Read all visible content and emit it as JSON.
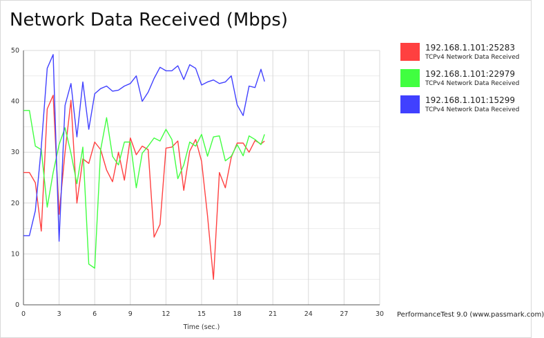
{
  "chart_data": {
    "type": "line",
    "title": "Network Data Received (Mbps)",
    "xlabel": "Time (sec.)",
    "ylabel": "",
    "xlim": [
      0,
      30
    ],
    "ylim": [
      0,
      50
    ],
    "xticks": [
      0,
      3,
      6,
      9,
      12,
      15,
      18,
      21,
      24,
      27,
      30
    ],
    "yticks": [
      0,
      10,
      20,
      30,
      40,
      50
    ],
    "grid": true,
    "legend_position": "right",
    "series": [
      {
        "name": "192.168.1.101:25283",
        "subtitle": "TCPv4 Network Data Received",
        "color": "#ff4040",
        "x": [
          0,
          0.5,
          1.0,
          1.5,
          2.0,
          2.5,
          3.0,
          3.5,
          4.0,
          4.5,
          5.0,
          5.5,
          6.0,
          6.5,
          7.0,
          7.5,
          8.0,
          8.5,
          9.0,
          9.5,
          10.0,
          10.5,
          11.0,
          11.5,
          12.0,
          12.5,
          13.0,
          13.5,
          14.0,
          14.5,
          15.0,
          15.5,
          16.0,
          16.5,
          17.0,
          17.5,
          18.0,
          18.5,
          19.0,
          19.5,
          20.0,
          20.3
        ],
        "y": [
          26,
          26,
          24,
          14.5,
          38.5,
          41.2,
          17.8,
          30,
          40.2,
          20,
          28.7,
          27.8,
          32,
          30.5,
          26.5,
          24.2,
          30,
          24.5,
          32.8,
          29.5,
          31.2,
          30.5,
          13.3,
          15.8,
          30.8,
          31,
          32.2,
          22.5,
          30.2,
          32.5,
          28.2,
          17.5,
          5,
          26,
          23,
          29,
          31.8,
          31.8,
          30,
          32.3,
          31.6,
          32.2
        ]
      },
      {
        "name": "192.168.1.101:22979",
        "subtitle": "TCPv4 Network Data Received",
        "color": "#40ff40",
        "x": [
          0,
          0.5,
          1.0,
          1.5,
          2.0,
          2.5,
          3.0,
          3.5,
          4.0,
          4.5,
          5.0,
          5.5,
          6.0,
          6.5,
          7.0,
          7.5,
          8.0,
          8.5,
          9.0,
          9.5,
          10.0,
          10.5,
          11.0,
          11.5,
          12.0,
          12.5,
          13.0,
          13.5,
          14.0,
          14.5,
          15.0,
          15.5,
          16.0,
          16.5,
          17.0,
          17.5,
          18.0,
          18.5,
          19.0,
          19.5,
          20.0,
          20.3
        ],
        "y": [
          38.2,
          38.2,
          31.2,
          30.5,
          19.2,
          26,
          31.5,
          34.8,
          29.8,
          23.8,
          31,
          8,
          7.2,
          30.5,
          36.8,
          29.2,
          27.5,
          32,
          32,
          23,
          29.8,
          31.2,
          32.8,
          32.2,
          34.5,
          32.5,
          24.8,
          27.5,
          32,
          31.2,
          33.5,
          29.2,
          33,
          33.2,
          28.3,
          29.2,
          31.5,
          29.3,
          33.2,
          32.5,
          31.5,
          33.5
        ]
      },
      {
        "name": "192.168.1.101:15299",
        "subtitle": "TCPv4 Network Data Received",
        "color": "#4040ff",
        "x": [
          0,
          0.5,
          1.0,
          1.5,
          2.0,
          2.5,
          3.0,
          3.5,
          4.0,
          4.5,
          5.0,
          5.5,
          6.0,
          6.5,
          7.0,
          7.5,
          8.0,
          8.5,
          9.0,
          9.5,
          10.0,
          10.5,
          11.0,
          11.5,
          12.0,
          12.5,
          13.0,
          13.5,
          14.0,
          14.5,
          15.0,
          15.5,
          16.0,
          16.5,
          17.0,
          17.5,
          18.0,
          18.5,
          19.0,
          19.5,
          20.0,
          20.3
        ],
        "y": [
          13.6,
          13.6,
          18.5,
          31,
          46.5,
          49.2,
          12.5,
          39.2,
          43.5,
          33,
          43.8,
          34.5,
          41.5,
          42.5,
          43,
          42,
          42.2,
          43,
          43.5,
          45,
          40,
          41.8,
          44.5,
          46.7,
          46,
          46,
          47,
          44.3,
          47.2,
          46.5,
          43.2,
          43.8,
          44.2,
          43.5,
          43.8,
          45,
          39.3,
          37.2,
          43,
          42.7,
          46.3,
          43.9
        ]
      }
    ]
  },
  "footer": "PerformanceTest 9.0 (www.passmark.com)"
}
